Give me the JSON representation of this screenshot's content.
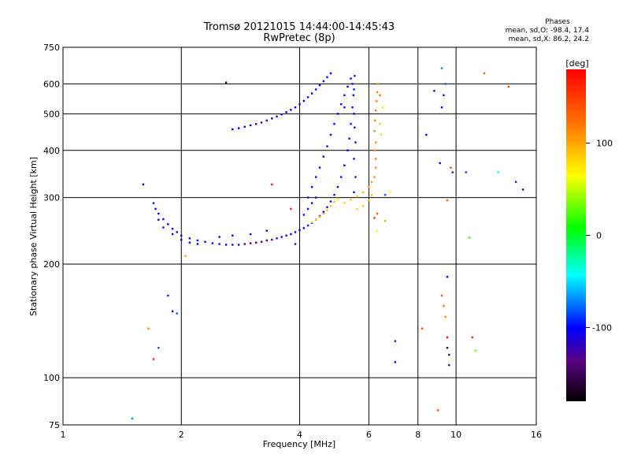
{
  "header": {
    "title_line1": "Tromsø 20121015 14:44:00-14:45:43",
    "title_line2": "RwPretec (8p)",
    "stats_heading": "Phases",
    "stats_o": "mean, sd,O: -98.4, 17.4",
    "stats_x": "mean, sd,X:  86.2, 24.2"
  },
  "chart_data": {
    "type": "scatter",
    "xlabel": "Frequency [MHz]",
    "ylabel": "Stationary phase Virtual Height [km]",
    "x_scale": "log",
    "y_scale": "log",
    "xlim": [
      1,
      16
    ],
    "ylim": [
      75,
      750
    ],
    "x_ticks": [
      1,
      2,
      4,
      6,
      8,
      10,
      16
    ],
    "y_ticks": [
      75,
      100,
      200,
      300,
      400,
      500,
      600,
      750
    ],
    "grid": true,
    "colorbar": {
      "label": "[deg]",
      "range": [
        -180,
        180
      ],
      "ticks": [
        100,
        0,
        -100
      ]
    },
    "series": [
      {
        "name": "O",
        "points": [
          [
            1.7,
            290,
            -95
          ],
          [
            1.72,
            280,
            -100
          ],
          [
            1.75,
            272,
            -98
          ],
          [
            1.8,
            263,
            -102
          ],
          [
            1.85,
            255,
            -99
          ],
          [
            1.9,
            248,
            -100
          ],
          [
            1.95,
            243,
            -104
          ],
          [
            2.0,
            238,
            -100
          ],
          [
            2.1,
            234,
            -102
          ],
          [
            2.2,
            231,
            -98
          ],
          [
            2.3,
            229,
            -106
          ],
          [
            2.4,
            227,
            -100
          ],
          [
            2.5,
            226,
            -110
          ],
          [
            2.6,
            225,
            -104
          ],
          [
            2.7,
            225,
            -112
          ],
          [
            2.8,
            225,
            -118
          ],
          [
            2.9,
            226,
            -125
          ],
          [
            3.0,
            227,
            -130
          ],
          [
            3.1,
            228,
            -128
          ],
          [
            3.2,
            229,
            -135
          ],
          [
            3.3,
            231,
            -132
          ],
          [
            3.4,
            232,
            -130
          ],
          [
            3.5,
            234,
            -120
          ],
          [
            3.6,
            236,
            -115
          ],
          [
            3.7,
            238,
            -110
          ],
          [
            3.8,
            240,
            -105
          ],
          [
            3.9,
            243,
            -102
          ],
          [
            4.0,
            246,
            -100
          ],
          [
            4.1,
            249,
            -98
          ],
          [
            4.2,
            253,
            -96
          ],
          [
            4.3,
            257,
            -95
          ],
          [
            4.4,
            262,
            -94
          ],
          [
            4.5,
            268,
            -95
          ],
          [
            4.6,
            275,
            -96
          ],
          [
            4.7,
            283,
            -97
          ],
          [
            4.8,
            293,
            -98
          ],
          [
            4.9,
            305,
            -99
          ],
          [
            5.0,
            320,
            -100
          ],
          [
            5.1,
            340,
            -101
          ],
          [
            5.2,
            365,
            -102
          ],
          [
            5.3,
            400,
            -103
          ],
          [
            5.35,
            430,
            -104
          ],
          [
            5.4,
            470,
            -100
          ],
          [
            5.45,
            520,
            -98
          ],
          [
            5.5,
            580,
            -96
          ],
          [
            5.52,
            630,
            -95
          ],
          [
            1.75,
            262,
            -104
          ],
          [
            1.8,
            250,
            -102
          ],
          [
            1.9,
            240,
            -100
          ],
          [
            2.0,
            232,
            -98
          ],
          [
            2.1,
            228,
            -100
          ],
          [
            2.2,
            226,
            -104
          ],
          [
            2.5,
            236,
            -100
          ],
          [
            2.7,
            238,
            -102
          ],
          [
            3.0,
            240,
            -104
          ],
          [
            3.3,
            245,
            -106
          ],
          [
            4.2,
            300,
            -100
          ],
          [
            4.3,
            320,
            -102
          ],
          [
            4.4,
            340,
            -104
          ],
          [
            4.5,
            360,
            -100
          ],
          [
            4.6,
            385,
            -98
          ],
          [
            4.7,
            410,
            -102
          ],
          [
            4.8,
            440,
            -100
          ],
          [
            4.9,
            470,
            -98
          ],
          [
            5.0,
            500,
            -100
          ],
          [
            5.1,
            530,
            -102
          ],
          [
            5.2,
            560,
            -98
          ],
          [
            5.3,
            590,
            -100
          ],
          [
            5.4,
            620,
            -102
          ],
          [
            4.1,
            270,
            -96
          ],
          [
            4.2,
            280,
            -98
          ],
          [
            4.3,
            290,
            -100
          ],
          [
            4.4,
            300,
            -102
          ],
          [
            5.45,
            600,
            -95
          ],
          [
            5.48,
            560,
            -98
          ],
          [
            5.5,
            500,
            -100
          ],
          [
            5.52,
            460,
            -102
          ],
          [
            5.55,
            420,
            -100
          ],
          [
            5.5,
            380,
            -98
          ],
          [
            5.55,
            340,
            -100
          ],
          [
            5.5,
            310,
            -104
          ],
          [
            2.7,
            455,
            -100
          ],
          [
            2.8,
            458,
            -105
          ],
          [
            2.9,
            462,
            -110
          ],
          [
            3.0,
            466,
            -115
          ],
          [
            3.1,
            470,
            -125
          ],
          [
            3.2,
            474,
            -130
          ],
          [
            3.3,
            480,
            -125
          ],
          [
            3.4,
            486,
            -118
          ],
          [
            3.5,
            492,
            -112
          ],
          [
            3.6,
            498,
            -108
          ],
          [
            3.7,
            505,
            -105
          ],
          [
            3.8,
            512,
            -102
          ],
          [
            3.9,
            520,
            -100
          ],
          [
            4.0,
            530,
            -98
          ],
          [
            4.1,
            541,
            -100
          ],
          [
            4.2,
            553,
            -102
          ],
          [
            4.3,
            566,
            -100
          ],
          [
            4.4,
            580,
            -98
          ],
          [
            4.5,
            595,
            -100
          ],
          [
            4.6,
            610,
            -102
          ],
          [
            4.7,
            625,
            -100
          ],
          [
            4.8,
            640,
            -100
          ],
          [
            1.6,
            325,
            -100
          ],
          [
            2.6,
            605,
            -150
          ],
          [
            3.9,
            226,
            -120
          ],
          [
            5.2,
            520,
            -95
          ]
        ]
      },
      {
        "name": "X",
        "points": [
          [
            4.3,
            258,
            90
          ],
          [
            4.4,
            262,
            95
          ],
          [
            4.5,
            267,
            100
          ],
          [
            4.6,
            272,
            98
          ],
          [
            4.7,
            278,
            92
          ],
          [
            4.8,
            285,
            88
          ],
          [
            4.9,
            292,
            85
          ],
          [
            5.0,
            298,
            80
          ],
          [
            5.2,
            290,
            82
          ],
          [
            5.4,
            296,
            86
          ],
          [
            5.6,
            302,
            90
          ],
          [
            5.8,
            310,
            95
          ],
          [
            6.0,
            320,
            100
          ],
          [
            6.1,
            330,
            105
          ],
          [
            6.2,
            340,
            110
          ],
          [
            6.25,
            360,
            112
          ],
          [
            6.25,
            380,
            115
          ],
          [
            6.2,
            400,
            110
          ],
          [
            6.25,
            420,
            108
          ],
          [
            6.2,
            450,
            112
          ],
          [
            6.22,
            480,
            115
          ],
          [
            6.25,
            510,
            118
          ],
          [
            6.28,
            540,
            114
          ],
          [
            6.3,
            570,
            110
          ],
          [
            6.32,
            600,
            108
          ],
          [
            5.6,
            280,
            85
          ],
          [
            5.8,
            285,
            88
          ],
          [
            6.0,
            295,
            90
          ],
          [
            6.1,
            305,
            92
          ],
          [
            6.4,
            470,
            50
          ],
          [
            6.45,
            440,
            45
          ],
          [
            6.5,
            520,
            55
          ],
          [
            6.4,
            560,
            120
          ],
          [
            6.3,
            272,
            140
          ],
          [
            6.2,
            265,
            150
          ],
          [
            3.8,
            280,
            160
          ],
          [
            3.4,
            325,
            170
          ],
          [
            1.65,
            135,
            120
          ],
          [
            1.7,
            112,
            160
          ],
          [
            1.75,
            120,
            -80
          ],
          [
            1.85,
            165,
            -95
          ],
          [
            1.9,
            150,
            -110
          ],
          [
            1.95,
            148,
            -80
          ],
          [
            2.05,
            210,
            100
          ],
          [
            1.5,
            78,
            -70
          ],
          [
            6.3,
            245,
            60
          ],
          [
            6.6,
            260,
            100
          ],
          [
            6.6,
            305,
            -80
          ],
          [
            6.8,
            310,
            60
          ],
          [
            7.0,
            125,
            -90
          ],
          [
            7.0,
            110,
            -100
          ],
          [
            8.2,
            135,
            140
          ],
          [
            8.4,
            440,
            -110
          ],
          [
            8.8,
            575,
            -110
          ],
          [
            9.1,
            370,
            -100
          ],
          [
            9.2,
            520,
            -110
          ],
          [
            9.3,
            560,
            -120
          ],
          [
            9.2,
            165,
            140
          ],
          [
            9.3,
            155,
            120
          ],
          [
            9.4,
            145,
            110
          ],
          [
            9.5,
            295,
            130
          ],
          [
            9.5,
            185,
            -100
          ],
          [
            9.5,
            128,
            170
          ],
          [
            9.5,
            120,
            -120
          ],
          [
            9.6,
            115,
            -100
          ],
          [
            9.6,
            108,
            -110
          ],
          [
            9.7,
            360,
            140
          ],
          [
            9.8,
            350,
            -140
          ],
          [
            10.6,
            350,
            -90
          ],
          [
            10.8,
            235,
            20
          ],
          [
            11.0,
            128,
            160
          ],
          [
            11.2,
            118,
            30
          ],
          [
            11.8,
            640,
            130
          ],
          [
            12.8,
            350,
            -40
          ],
          [
            13.6,
            590,
            140
          ],
          [
            14.2,
            330,
            -90
          ],
          [
            14.8,
            315,
            -130
          ],
          [
            9.0,
            82,
            140
          ],
          [
            9.4,
            600,
            -80
          ],
          [
            9.2,
            660,
            -70
          ]
        ]
      }
    ]
  }
}
